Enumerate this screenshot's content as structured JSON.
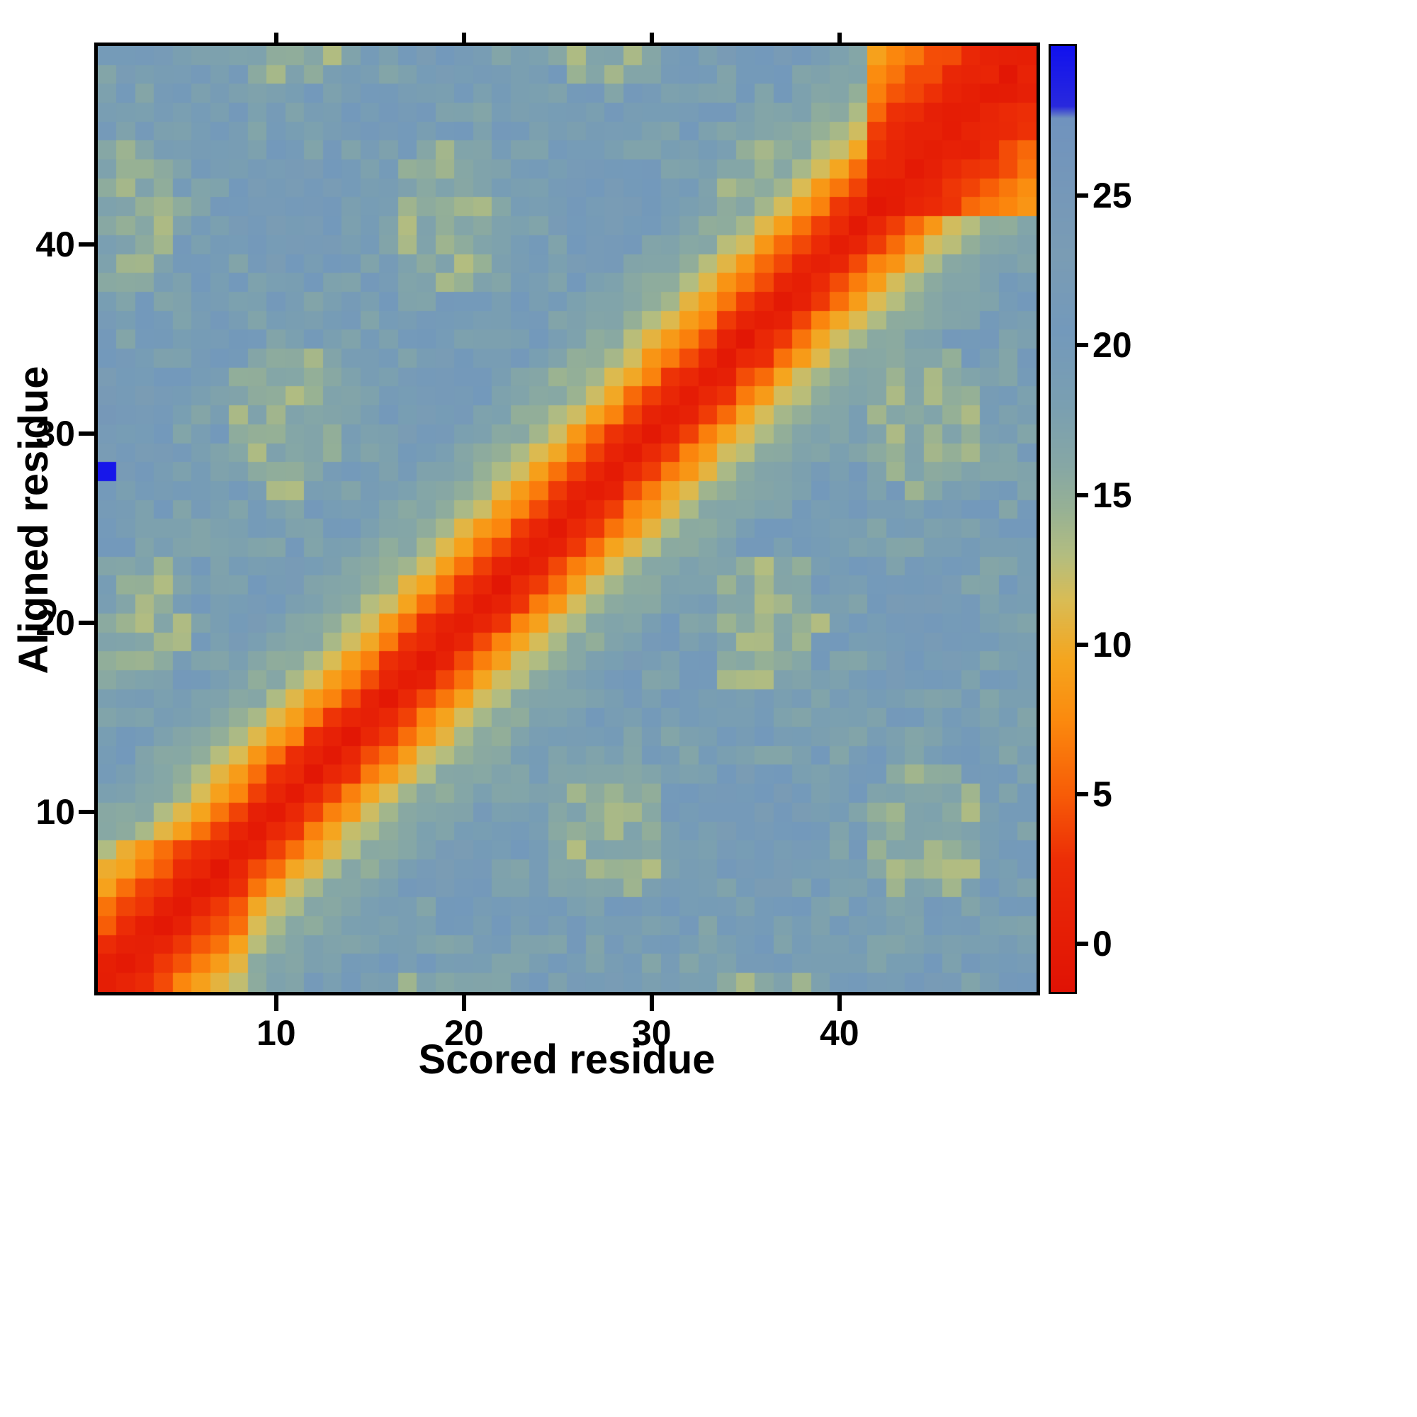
{
  "figure": {
    "background": "#ffffff"
  },
  "chart_data": {
    "type": "heatmap",
    "title": "",
    "xlabel": "Scored residue",
    "ylabel": "Aligned residue",
    "n_scored": 50,
    "n_aligned": 50,
    "x_range": [
      1,
      50
    ],
    "y_range": [
      1,
      50
    ],
    "x_ticks": [
      10,
      20,
      30,
      40
    ],
    "y_ticks": [
      10,
      20,
      30,
      40
    ],
    "grid": false,
    "legend": "none",
    "colorbar": {
      "position": "right",
      "ticks": [
        0,
        5,
        10,
        15,
        20,
        25
      ],
      "vmin": -1.6,
      "vmax": 30,
      "stops": [
        [
          -1.6,
          "#e01205"
        ],
        [
          2.8,
          "#ec2d06"
        ],
        [
          5.0,
          "#f75c07"
        ],
        [
          7.5,
          "#fb8a0e"
        ],
        [
          9.5,
          "#f5a51e"
        ],
        [
          11.5,
          "#d9bc55"
        ],
        [
          13.0,
          "#b3bd80"
        ],
        [
          14.5,
          "#97b194"
        ],
        [
          16.0,
          "#86a7a5"
        ],
        [
          18.0,
          "#7a9fb1"
        ],
        [
          20.5,
          "#7399bb"
        ],
        [
          23.0,
          "#7a9cb4"
        ],
        [
          27.6,
          "#7093be"
        ],
        [
          28.0,
          "#2929dd"
        ],
        [
          30,
          "#1111ee"
        ]
      ]
    },
    "pattern": {
      "note": "Alignment-error style matrix: red (low, ~0) diagonal band widening through orange to a green halo, gray-blue high background (~17-22); band broadens in the top-right corner; one saturated blue outlier cell at scored 1 / aligned 28.",
      "diagonal_profile": [
        0,
        1.5,
        3.5,
        6.5,
        9,
        11.5,
        13.5,
        15.5
      ],
      "band_halfwidth_cells": 8,
      "background_mean": 18.6,
      "background_noise": 2.2,
      "green_halo_value": 15.4,
      "corner_start": 42,
      "corner_band_scale": 0.5,
      "bottomleft_band_scale": 0.78,
      "first_column_bias": 2,
      "outlier": {
        "scored": 1,
        "aligned": 28,
        "value": 29.5
      }
    }
  }
}
